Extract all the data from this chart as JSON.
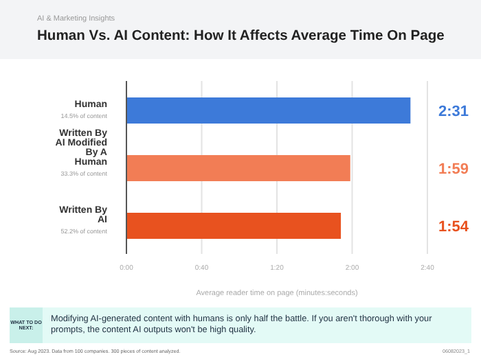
{
  "chart_data": {
    "type": "bar",
    "orientation": "horizontal",
    "subtitle": "AI & Marketing Insights",
    "title": "Human Vs. AI Content: How It Affects Average Time On Page",
    "categories": [
      "Human",
      "Written By AI Modified By A Human",
      "Written By AI"
    ],
    "values": [
      151,
      119,
      114
    ],
    "colors": [
      "#3d7ad9",
      "#f27d55",
      "#e8521f"
    ],
    "value_labels": [
      "2:31",
      "1:59",
      "1:54"
    ],
    "xlim": [
      0,
      160
    ],
    "xticks": [
      {
        "value": 0,
        "label": "0:00"
      },
      {
        "value": 40,
        "label": "0:40"
      },
      {
        "value": 80,
        "label": "1:20"
      },
      {
        "value": 120,
        "label": "2:00"
      },
      {
        "value": 160,
        "label": "2:40"
      }
    ],
    "xlabel": "Average reader time on page (minutes:seconds)",
    "grid": "x",
    "annotations": [
      "14.5% of content",
      "33.3% of content",
      "52.2% of content",
      "WHAT TO DO NEXT:",
      "Modifying AI-generated content with humans is only half the battle. If you aren't thorough with your prompts, the content AI outputs won't be high quality.",
      "Source: Aug 2023. Data from 100 companies. 300 pieces of content analyzed.",
      "06082023_1"
    ]
  }
}
